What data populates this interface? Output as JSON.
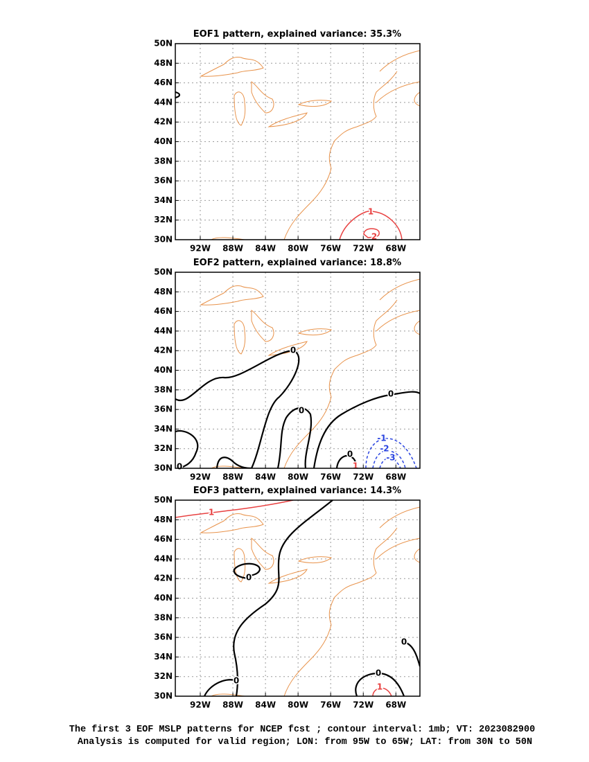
{
  "panels": [
    {
      "title": "EOF1 pattern, explained variance: 35.3%",
      "contour_labels": [
        "1",
        "2"
      ]
    },
    {
      "title": "EOF2 pattern, explained variance: 18.8%",
      "contour_labels": [
        "0",
        "0",
        "0",
        "0",
        "0",
        "1",
        "-1",
        "-2",
        "-3"
      ]
    },
    {
      "title": "EOF3 pattern, explained variance: 14.3%",
      "contour_labels": [
        "1",
        "0",
        "0",
        "0",
        "0",
        "1"
      ]
    }
  ],
  "lat_labels": [
    "50N",
    "48N",
    "46N",
    "44N",
    "42N",
    "40N",
    "38N",
    "36N",
    "34N",
    "32N",
    "30N"
  ],
  "lon_labels": [
    "92W",
    "88W",
    "84W",
    "80W",
    "76W",
    "72W",
    "68W"
  ],
  "footer": [
    "The first 3 EOF MSLP patterns for NCEP fcst ; contour interval: 1mb; VT: 2023082900",
    "Analysis is computed for valid region; LON: from 95W to 65W; LAT: from 30N to 50N"
  ]
}
